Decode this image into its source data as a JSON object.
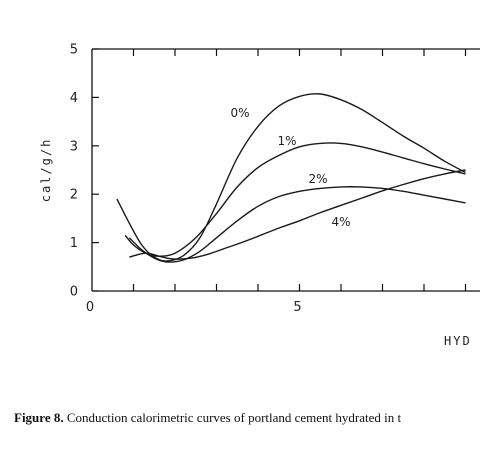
{
  "chart_data": {
    "type": "line",
    "title": "",
    "xlabel": "HYD",
    "ylabel": "cal/g/h",
    "xlim": [
      0,
      9
    ],
    "ylim": [
      0,
      5
    ],
    "x_ticks": [
      0,
      5
    ],
    "y_ticks": [
      0,
      1,
      2,
      3,
      4,
      5
    ],
    "grid": false,
    "series": [
      {
        "name": "0%",
        "x": [
          0.6,
          0.9,
          1.2,
          1.5,
          1.8,
          2.2,
          2.6,
          3.0,
          3.5,
          4.0,
          4.5,
          5.0,
          5.5,
          6.0,
          6.5,
          7.0,
          7.5,
          8.0,
          8.5,
          9.0
        ],
        "y": [
          1.9,
          1.4,
          0.95,
          0.7,
          0.62,
          0.73,
          1.1,
          1.8,
          2.75,
          3.4,
          3.82,
          4.02,
          4.07,
          3.95,
          3.75,
          3.48,
          3.2,
          2.95,
          2.68,
          2.45
        ]
      },
      {
        "name": "1%",
        "x": [
          0.8,
          1.0,
          1.3,
          1.6,
          2.0,
          2.5,
          3.0,
          3.5,
          4.0,
          4.5,
          5.0,
          5.5,
          6.0,
          6.5,
          7.0,
          7.5,
          8.0,
          8.5,
          9.0
        ],
        "y": [
          1.15,
          0.95,
          0.78,
          0.72,
          0.78,
          1.1,
          1.6,
          2.15,
          2.55,
          2.8,
          2.98,
          3.05,
          3.05,
          2.98,
          2.87,
          2.75,
          2.63,
          2.52,
          2.42
        ]
      },
      {
        "name": "2%",
        "x": [
          0.9,
          1.2,
          1.5,
          1.8,
          2.2,
          2.6,
          3.0,
          3.5,
          4.0,
          4.5,
          5.0,
          5.5,
          6.0,
          6.5,
          7.0,
          7.5,
          8.0,
          8.5,
          9.0
        ],
        "y": [
          1.1,
          0.85,
          0.68,
          0.6,
          0.64,
          0.82,
          1.1,
          1.45,
          1.75,
          1.95,
          2.06,
          2.12,
          2.15,
          2.15,
          2.12,
          2.06,
          1.98,
          1.9,
          1.82
        ]
      },
      {
        "name": "4%",
        "x": [
          0.9,
          1.3,
          1.7,
          2.0,
          2.4,
          2.8,
          3.2,
          3.6,
          4.0,
          4.5,
          5.0,
          5.5,
          6.0,
          6.5,
          7.0,
          7.5,
          8.0,
          8.5,
          9.0
        ],
        "y": [
          0.7,
          0.78,
          0.7,
          0.66,
          0.68,
          0.76,
          0.88,
          1.0,
          1.13,
          1.3,
          1.45,
          1.62,
          1.77,
          1.92,
          2.07,
          2.2,
          2.32,
          2.42,
          2.5
        ]
      }
    ]
  },
  "caption": {
    "label": "Figure 8.",
    "text": " Conduction calorimetric curves of portland cement hydrated in t"
  }
}
